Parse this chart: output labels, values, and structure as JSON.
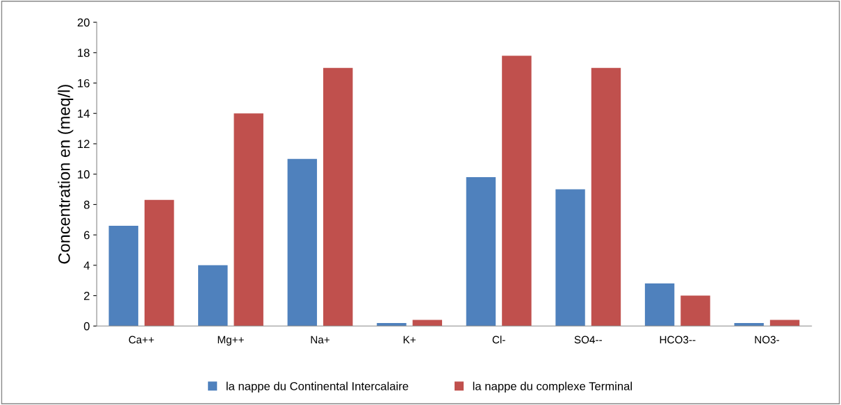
{
  "chart_data": {
    "type": "bar",
    "ylabel": "Concentration en (meq/l)",
    "categories": [
      "Ca++",
      "Mg++",
      "Na+",
      "K+",
      "Cl-",
      "SO4--",
      "HCO3--",
      "NO3-"
    ],
    "series": [
      {
        "name": "la nappe du Continental Intercalaire",
        "color": "#4f81bd",
        "values": [
          6.6,
          4.0,
          11.0,
          0.2,
          9.8,
          9.0,
          2.8,
          0.2
        ]
      },
      {
        "name": "la nappe du complexe Terminal",
        "color": "#c0504d",
        "values": [
          8.3,
          14.0,
          17.0,
          0.4,
          17.8,
          17.0,
          2.0,
          0.4
        ]
      }
    ],
    "ylim": [
      0,
      20
    ],
    "yticks": [
      0,
      2,
      4,
      6,
      8,
      10,
      12,
      14,
      16,
      18,
      20
    ],
    "grid": false,
    "legend": "bottom"
  }
}
